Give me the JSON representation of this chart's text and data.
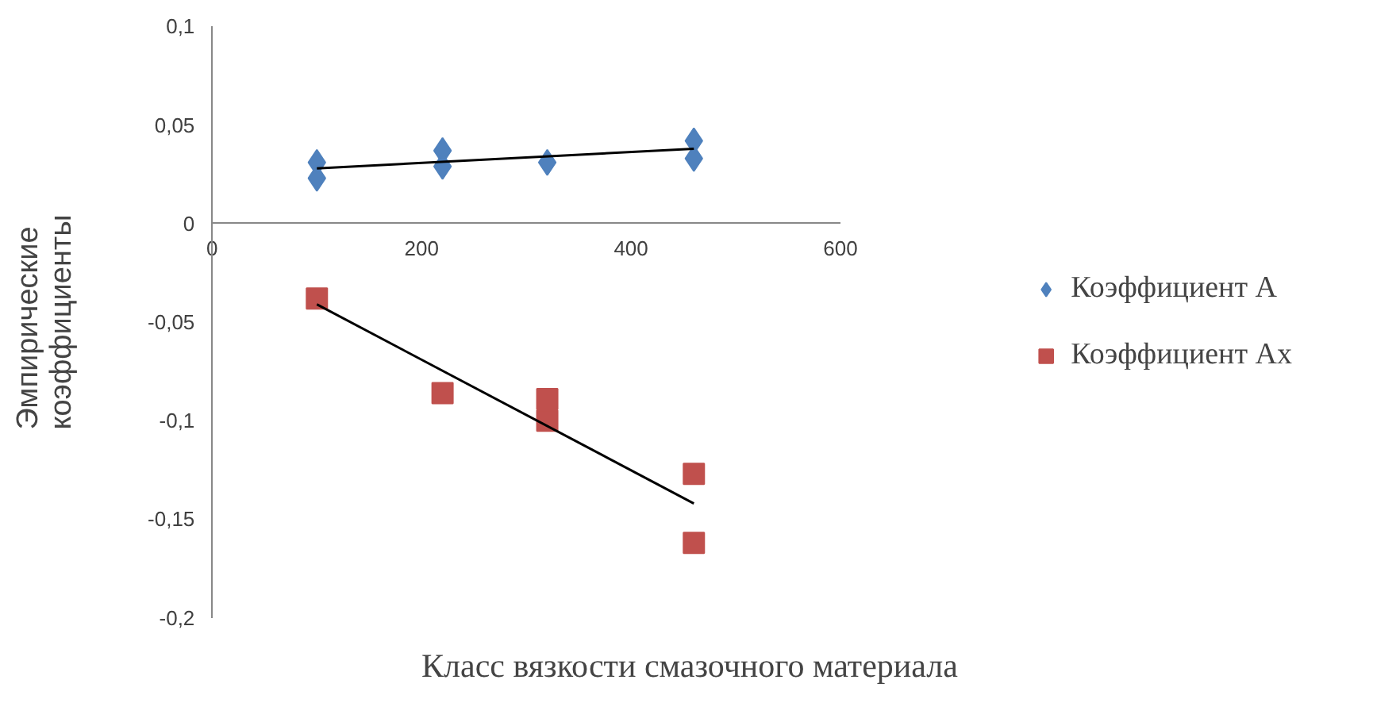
{
  "chart_data": {
    "type": "scatter",
    "xlabel": "Класс вязкости смазочного материала",
    "ylabel": "Эмпирические\nкоэффициенты",
    "xlim": [
      0,
      600
    ],
    "xticks": [
      0,
      200,
      400,
      600
    ],
    "ylim": [
      -0.2,
      0.1
    ],
    "yticks": [
      {
        "value": 0.1,
        "label": "0,1"
      },
      {
        "value": 0.05,
        "label": "0,05"
      },
      0,
      {
        "value": -0.05,
        "label": "-0,05"
      },
      {
        "value": -0.1,
        "label": "-0,1"
      },
      {
        "value": -0.15,
        "label": "-0,15"
      },
      {
        "value": -0.2,
        "label": "-0,2"
      }
    ],
    "grid": false,
    "legend": "right",
    "series": [
      {
        "name": "Коэффициент А",
        "color": "#4f81bd",
        "marker": "diamond",
        "x": [
          100,
          100,
          220,
          220,
          320,
          460,
          460
        ],
        "values": [
          0.031,
          0.023,
          0.037,
          0.029,
          0.031,
          0.042,
          0.033
        ]
      },
      {
        "name": "Коэффициент Ах",
        "color": "#c0504d",
        "marker": "square",
        "x": [
          100,
          220,
          320,
          320,
          460,
          460
        ],
        "values": [
          -0.038,
          -0.086,
          -0.089,
          -0.1,
          -0.127,
          -0.162
        ]
      },
      {
        "type": "line",
        "color": "#000000",
        "x": [
          100,
          460
        ],
        "values": [
          0.028,
          0.038
        ]
      },
      {
        "type": "line",
        "color": "#000000",
        "x": [
          100,
          460
        ],
        "values": [
          -0.041,
          -0.142
        ]
      }
    ]
  }
}
